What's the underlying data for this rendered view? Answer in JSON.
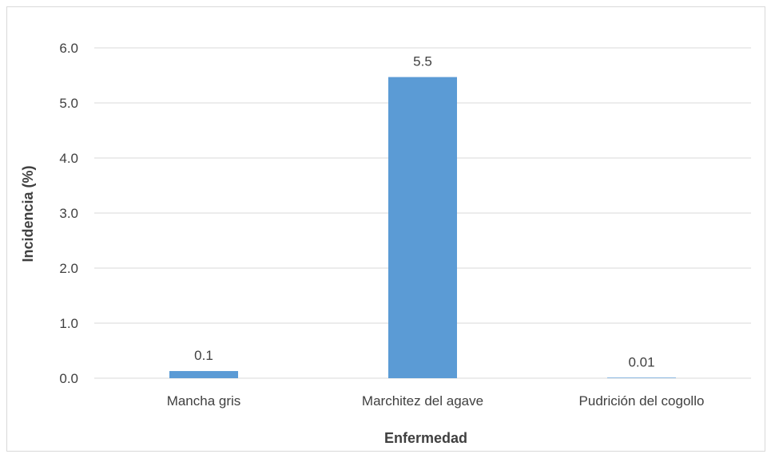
{
  "chart_data": {
    "type": "bar",
    "title": "",
    "xlabel": "Enfermedad",
    "ylabel": "Incidencia (%)",
    "categories": [
      "Mancha gris",
      "Marchitez del agave",
      "Pudrición del cogollo"
    ],
    "values": [
      0.13,
      5.47,
      0.01
    ],
    "value_labels": [
      "0.1",
      "5.5",
      "0.01"
    ],
    "ylim": [
      0,
      6
    ],
    "yticks": [
      "0.0",
      "1.0",
      "2.0",
      "3.0",
      "4.0",
      "5.0",
      "6.0"
    ],
    "grid": true,
    "bar_color": "#5b9bd5",
    "grid_color": "#d9d9d9"
  }
}
